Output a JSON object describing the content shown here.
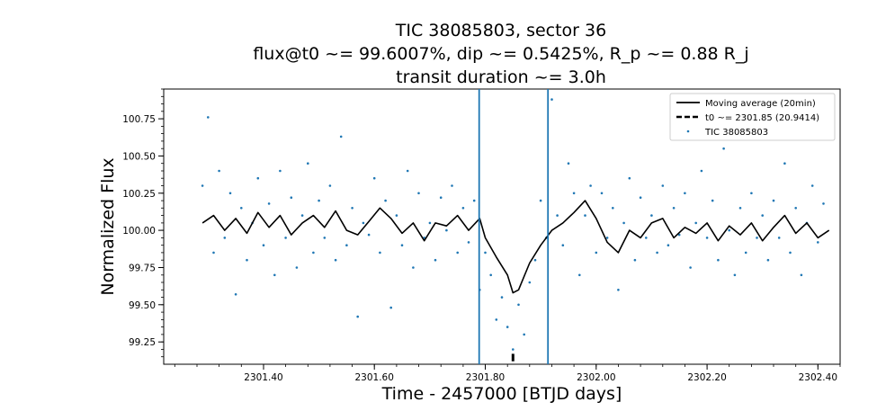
{
  "chart_data": {
    "type": "scatter",
    "title_lines": [
      "TIC 38085803, sector 36",
      "flux@t0 ~= 99.6007%, dip ~= 0.5425%, R_p ~= 0.88 R_j",
      "transit duration ~= 3.0h"
    ],
    "xlabel": "Time - 2457000 [BTJD days]",
    "ylabel": "Normalized Flux",
    "xlim": [
      2301.22,
      2302.44
    ],
    "ylim": [
      99.1,
      100.95
    ],
    "x_ticks": [
      2301.4,
      2301.6,
      2301.8,
      2302.0,
      2302.2,
      2302.4
    ],
    "x_tick_labels": [
      "2301.40",
      "2301.60",
      "2301.80",
      "2302.00",
      "2302.20",
      "2302.40"
    ],
    "y_ticks": [
      99.25,
      99.5,
      99.75,
      100.0,
      100.25,
      100.5,
      100.75
    ],
    "y_tick_labels": [
      "99.25",
      "99.50",
      "99.75",
      "100.00",
      "100.25",
      "100.50",
      "100.75"
    ],
    "legend": {
      "position": "upper right",
      "entries": [
        {
          "label": "Moving average (20min)",
          "style": "solid-line",
          "color": "#000000"
        },
        {
          "label": "t0 ~= 2301.85 (20.9414)",
          "style": "dashed-line",
          "color": "#000000"
        },
        {
          "label": "TIC 38085803",
          "style": "point",
          "color": "#1f77b4"
        }
      ]
    },
    "transit_bounds": [
      2301.789,
      2301.913
    ],
    "t0": 2301.85,
    "t0_marker_range": [
      99.12,
      99.17
    ],
    "colors": {
      "points": "#1f77b4",
      "average": "#000000",
      "bounds": "#1f77b4"
    },
    "series": [
      {
        "name": "Moving average (20min)",
        "x": [
          2301.29,
          2301.31,
          2301.33,
          2301.35,
          2301.37,
          2301.39,
          2301.41,
          2301.43,
          2301.45,
          2301.47,
          2301.49,
          2301.51,
          2301.53,
          2301.55,
          2301.57,
          2301.59,
          2301.61,
          2301.63,
          2301.65,
          2301.67,
          2301.69,
          2301.71,
          2301.73,
          2301.75,
          2301.77,
          2301.79,
          2301.8,
          2301.82,
          2301.84,
          2301.85,
          2301.86,
          2301.88,
          2301.9,
          2301.92,
          2301.94,
          2301.96,
          2301.98,
          2302.0,
          2302.02,
          2302.04,
          2302.06,
          2302.08,
          2302.1,
          2302.12,
          2302.14,
          2302.16,
          2302.18,
          2302.2,
          2302.22,
          2302.24,
          2302.26,
          2302.28,
          2302.3,
          2302.32,
          2302.34,
          2302.36,
          2302.38,
          2302.4,
          2302.42
        ],
        "y": [
          100.05,
          100.1,
          100.0,
          100.08,
          99.98,
          100.12,
          100.02,
          100.1,
          99.97,
          100.05,
          100.1,
          100.02,
          100.13,
          100.0,
          99.97,
          100.06,
          100.15,
          100.08,
          99.98,
          100.05,
          99.93,
          100.05,
          100.03,
          100.1,
          100.0,
          100.08,
          99.95,
          99.82,
          99.7,
          99.58,
          99.6,
          99.78,
          99.9,
          100.0,
          100.05,
          100.12,
          100.2,
          100.08,
          99.92,
          99.85,
          100.0,
          99.95,
          100.05,
          100.08,
          99.95,
          100.02,
          99.98,
          100.05,
          99.93,
          100.03,
          99.97,
          100.05,
          99.93,
          100.02,
          100.1,
          99.98,
          100.05,
          99.95,
          100.0
        ]
      },
      {
        "name": "TIC 38085803",
        "x": [
          2301.29,
          2301.3,
          2301.31,
          2301.32,
          2301.33,
          2301.34,
          2301.35,
          2301.36,
          2301.37,
          2301.38,
          2301.39,
          2301.4,
          2301.41,
          2301.42,
          2301.43,
          2301.44,
          2301.45,
          2301.46,
          2301.47,
          2301.48,
          2301.49,
          2301.5,
          2301.51,
          2301.52,
          2301.53,
          2301.54,
          2301.55,
          2301.56,
          2301.57,
          2301.58,
          2301.59,
          2301.6,
          2301.61,
          2301.62,
          2301.63,
          2301.64,
          2301.65,
          2301.66,
          2301.67,
          2301.68,
          2301.69,
          2301.7,
          2301.71,
          2301.72,
          2301.73,
          2301.74,
          2301.75,
          2301.76,
          2301.77,
          2301.78,
          2301.79,
          2301.8,
          2301.81,
          2301.82,
          2301.83,
          2301.84,
          2301.85,
          2301.86,
          2301.87,
          2301.88,
          2301.89,
          2301.9,
          2301.91,
          2301.92,
          2301.93,
          2301.94,
          2301.95,
          2301.96,
          2301.97,
          2301.98,
          2301.99,
          2302.0,
          2302.01,
          2302.02,
          2302.03,
          2302.04,
          2302.05,
          2302.06,
          2302.07,
          2302.08,
          2302.09,
          2302.1,
          2302.11,
          2302.12,
          2302.13,
          2302.14,
          2302.15,
          2302.16,
          2302.17,
          2302.18,
          2302.19,
          2302.2,
          2302.21,
          2302.22,
          2302.23,
          2302.24,
          2302.25,
          2302.26,
          2302.27,
          2302.28,
          2302.29,
          2302.3,
          2302.31,
          2302.32,
          2302.33,
          2302.34,
          2302.35,
          2302.36,
          2302.37,
          2302.38,
          2302.39,
          2302.4,
          2302.41
        ],
        "y": [
          100.3,
          100.76,
          99.85,
          100.4,
          99.95,
          100.25,
          99.57,
          100.15,
          99.8,
          100.05,
          100.35,
          99.9,
          100.18,
          99.7,
          100.4,
          99.95,
          100.22,
          99.75,
          100.1,
          100.45,
          99.85,
          100.2,
          99.95,
          100.3,
          99.8,
          100.63,
          99.9,
          100.15,
          99.42,
          100.05,
          99.97,
          100.35,
          99.85,
          100.2,
          99.48,
          100.1,
          99.9,
          100.4,
          99.75,
          100.25,
          99.95,
          100.05,
          99.8,
          100.22,
          100.0,
          100.3,
          99.85,
          100.15,
          99.92,
          100.2,
          99.6,
          99.85,
          99.7,
          99.4,
          99.55,
          99.35,
          99.2,
          99.5,
          99.3,
          99.65,
          99.8,
          100.2,
          99.95,
          100.88,
          100.1,
          99.9,
          100.45,
          100.25,
          99.7,
          100.1,
          100.3,
          99.85,
          100.25,
          99.95,
          100.15,
          99.6,
          100.05,
          100.35,
          99.8,
          100.22,
          99.95,
          100.1,
          99.85,
          100.3,
          99.9,
          100.15,
          99.97,
          100.25,
          99.75,
          100.05,
          100.4,
          99.95,
          100.2,
          99.8,
          100.55,
          100.0,
          99.7,
          100.15,
          99.85,
          100.25,
          99.95,
          100.1,
          99.8,
          100.2,
          99.95,
          100.45,
          99.85,
          100.15,
          99.7,
          100.05,
          100.3,
          99.92,
          100.18
        ]
      }
    ]
  }
}
